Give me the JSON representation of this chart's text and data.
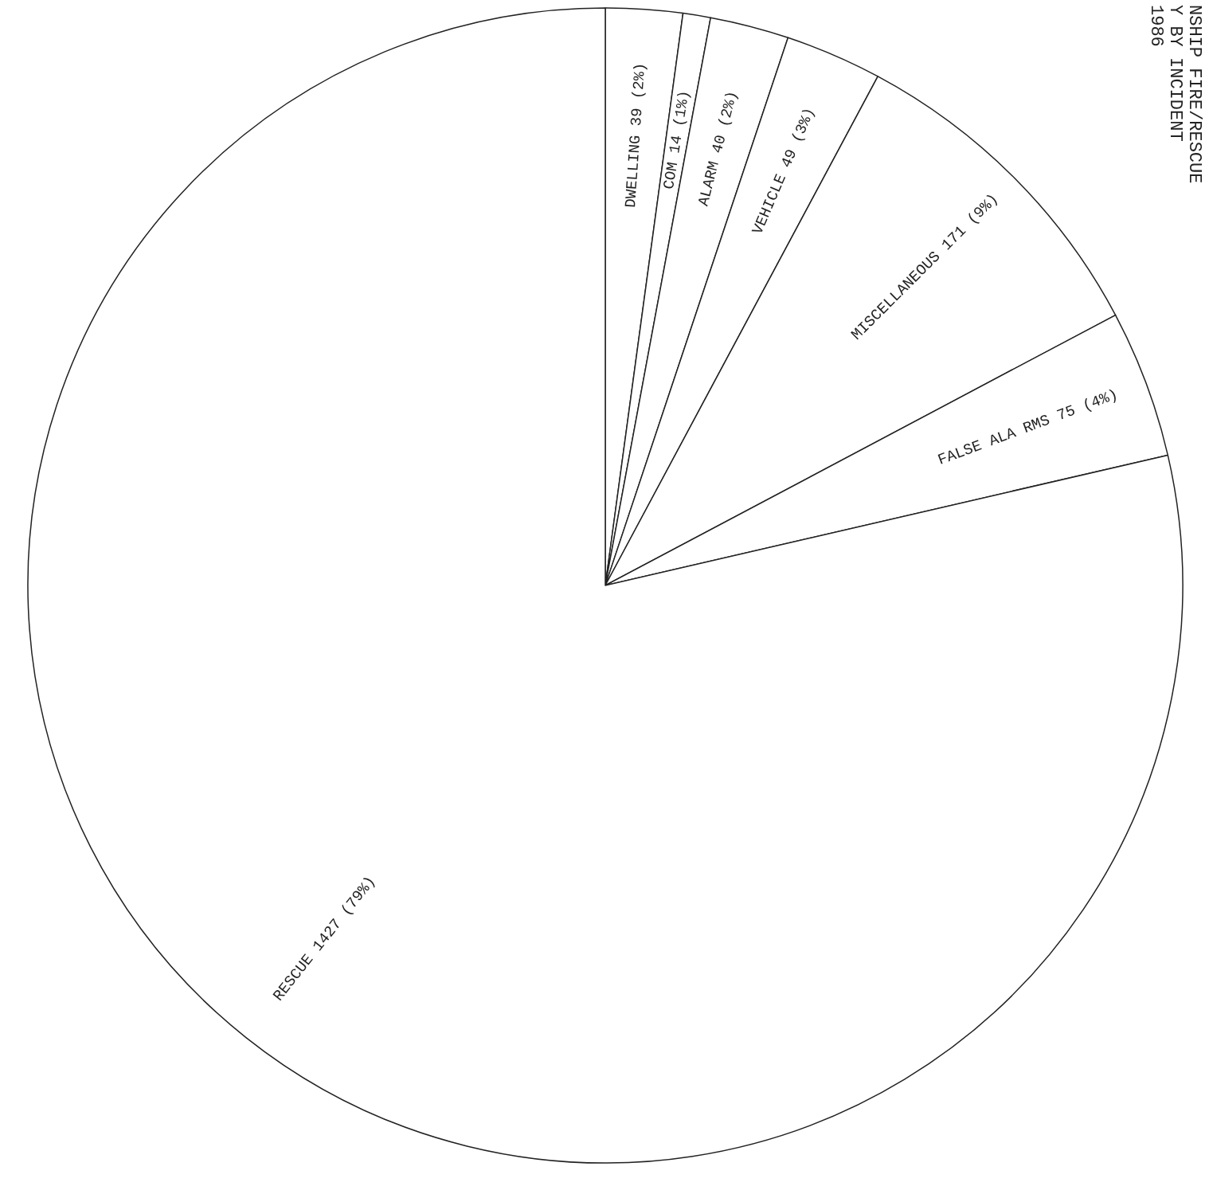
{
  "chart_data": {
    "type": "pie",
    "title": "NSHIP FIRE/RESCUE",
    "subtitle": "Y BY INCIDENT",
    "annotations": [
      "1986"
    ],
    "categories": [
      "DWELLING",
      "COM",
      "ALARM",
      "VEHICLE",
      "MISCELLANEOUS",
      "FALSE ALA RMS",
      "RESCUE"
    ],
    "values": [
      39,
      14,
      40,
      49,
      171,
      75,
      1427
    ],
    "value_labels": [
      "39 (2%)",
      "14 (1%)",
      "40 (2%)",
      "49 (3%)",
      "171 (9%)",
      "75 (4%)",
      "1427 (79%)"
    ],
    "colors": [
      "#ffffff",
      "#ffffff",
      "#ffffff",
      "#ffffff",
      "#ffffff",
      "#ffffff",
      "#ffffff"
    ],
    "legend": false
  }
}
